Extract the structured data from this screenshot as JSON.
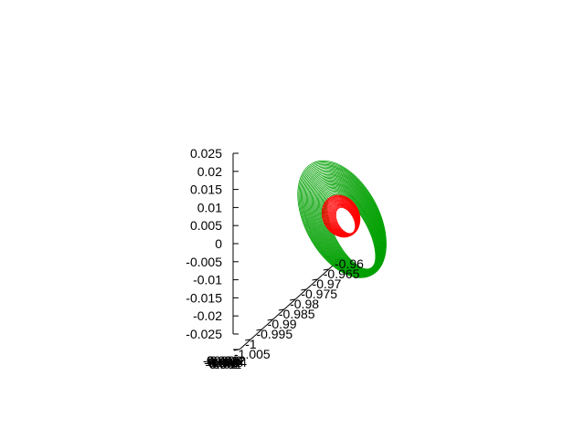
{
  "chart_data": {
    "type": "line",
    "subtype": "3d-parametric-orbits",
    "title": "",
    "z_axis": {
      "label": "",
      "range": [
        -0.025,
        0.025
      ],
      "tick_labels": [
        "0.025",
        "0.02",
        "0.015",
        "0.01",
        "0.005",
        "0",
        "-0.005",
        "-0.01",
        "-0.015",
        "-0.02",
        "-0.025"
      ]
    },
    "y_axis": {
      "label": "",
      "range": [
        -1.005,
        -0.96
      ],
      "tick_labels": [
        "-0.96",
        "-0.965",
        "-0.97",
        "-0.975",
        "-0.98",
        "-0.985",
        "-0.99",
        "-0.995",
        "-1",
        "-1.005"
      ]
    },
    "x_axis": {
      "label": "",
      "tick_labels_overlapping": true,
      "tick_labels": [
        "-0.006",
        "-0.004",
        "-0.002",
        "0",
        "0.002",
        "0.004",
        "0.006",
        "0.008",
        "0.01",
        "0.012",
        "0.014"
      ]
    },
    "grid": false,
    "legend": "none",
    "series": [
      {
        "color": "#00a000",
        "orbit_count": 28,
        "z_range": [
          -0.0125,
          0.0225
        ],
        "y_range": [
          -0.99,
          -0.965
        ]
      },
      {
        "color": "#ff0000",
        "orbit_count": 16,
        "z_range": [
          0.001,
          0.013
        ],
        "y_range": [
          -0.983,
          -0.975
        ]
      }
    ]
  }
}
